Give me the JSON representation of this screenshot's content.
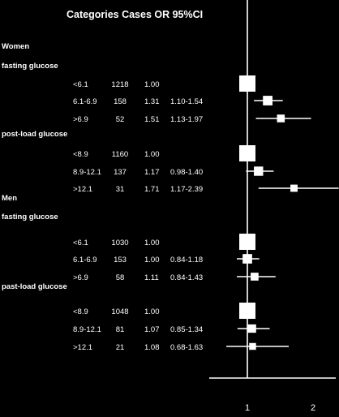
{
  "chart_data": {
    "type": "forest",
    "header": "Categories Cases  OR  95%CI",
    "x_ticks": [
      1,
      2
    ],
    "xlim": [
      0.45,
      2.2
    ],
    "reference_x": 1,
    "groups": [
      {
        "label": "Women",
        "subgroups": [
          {
            "label": "fasting glucose",
            "rows": [
              {
                "category": "<6.1",
                "cases": "1218",
                "or_text": "1.00",
                "ci_text": "",
                "or": 1.0,
                "lo": 1.0,
                "hi": 1.0
              },
              {
                "category": "6.1-6.9",
                "cases": "158",
                "or_text": "1.31",
                "ci_text": "1.10-1.54",
                "or": 1.31,
                "lo": 1.1,
                "hi": 1.54
              },
              {
                "category": ">6.9",
                "cases": "52",
                "or_text": "1.51",
                "ci_text": "1.13-1.97",
                "or": 1.51,
                "lo": 1.13,
                "hi": 1.97
              }
            ]
          },
          {
            "label": "post-load glucose",
            "rows": [
              {
                "category": "<8.9",
                "cases": "1160",
                "or_text": "1.00",
                "ci_text": "",
                "or": 1.0,
                "lo": 1.0,
                "hi": 1.0
              },
              {
                "category": "8.9-12.1",
                "cases": "137",
                "or_text": "1.17",
                "ci_text": "0.98-1.40",
                "or": 1.17,
                "lo": 0.98,
                "hi": 1.4
              },
              {
                "category": ">12.1",
                "cases": "31",
                "or_text": "1.71",
                "ci_text": "1.17-2.39",
                "or": 1.71,
                "lo": 1.17,
                "hi": 2.39
              }
            ]
          }
        ]
      },
      {
        "label": "Men",
        "subgroups": [
          {
            "label": "fasting glucose",
            "rows": [
              {
                "category": "<6.1",
                "cases": "1030",
                "or_text": "1.00",
                "ci_text": "",
                "or": 1.0,
                "lo": 1.0,
                "hi": 1.0
              },
              {
                "category": "6.1-6.9",
                "cases": "153",
                "or_text": "1.00",
                "ci_text": "0.84-1.18",
                "or": 1.0,
                "lo": 0.84,
                "hi": 1.18
              },
              {
                "category": ">6.9",
                "cases": "58",
                "or_text": "1.11",
                "ci_text": "0.84-1.43",
                "or": 1.11,
                "lo": 0.84,
                "hi": 1.43
              }
            ]
          },
          {
            "label": "past-load glucose",
            "rows": [
              {
                "category": "<8.9",
                "cases": "1048",
                "or_text": "1.00",
                "ci_text": "",
                "or": 1.0,
                "lo": 1.0,
                "hi": 1.0
              },
              {
                "category": "8.9-12.1",
                "cases": "81",
                "or_text": "1.07",
                "ci_text": "0.85-1.34",
                "or": 1.07,
                "lo": 0.85,
                "hi": 1.34
              },
              {
                "category": ">12.1",
                "cases": "21",
                "or_text": "1.08",
                "ci_text": "0.68-1.63",
                "or": 1.08,
                "lo": 0.68,
                "hi": 1.63
              }
            ]
          }
        ]
      }
    ]
  },
  "colors": {
    "background": "#000000",
    "foreground": "#ffffff"
  }
}
